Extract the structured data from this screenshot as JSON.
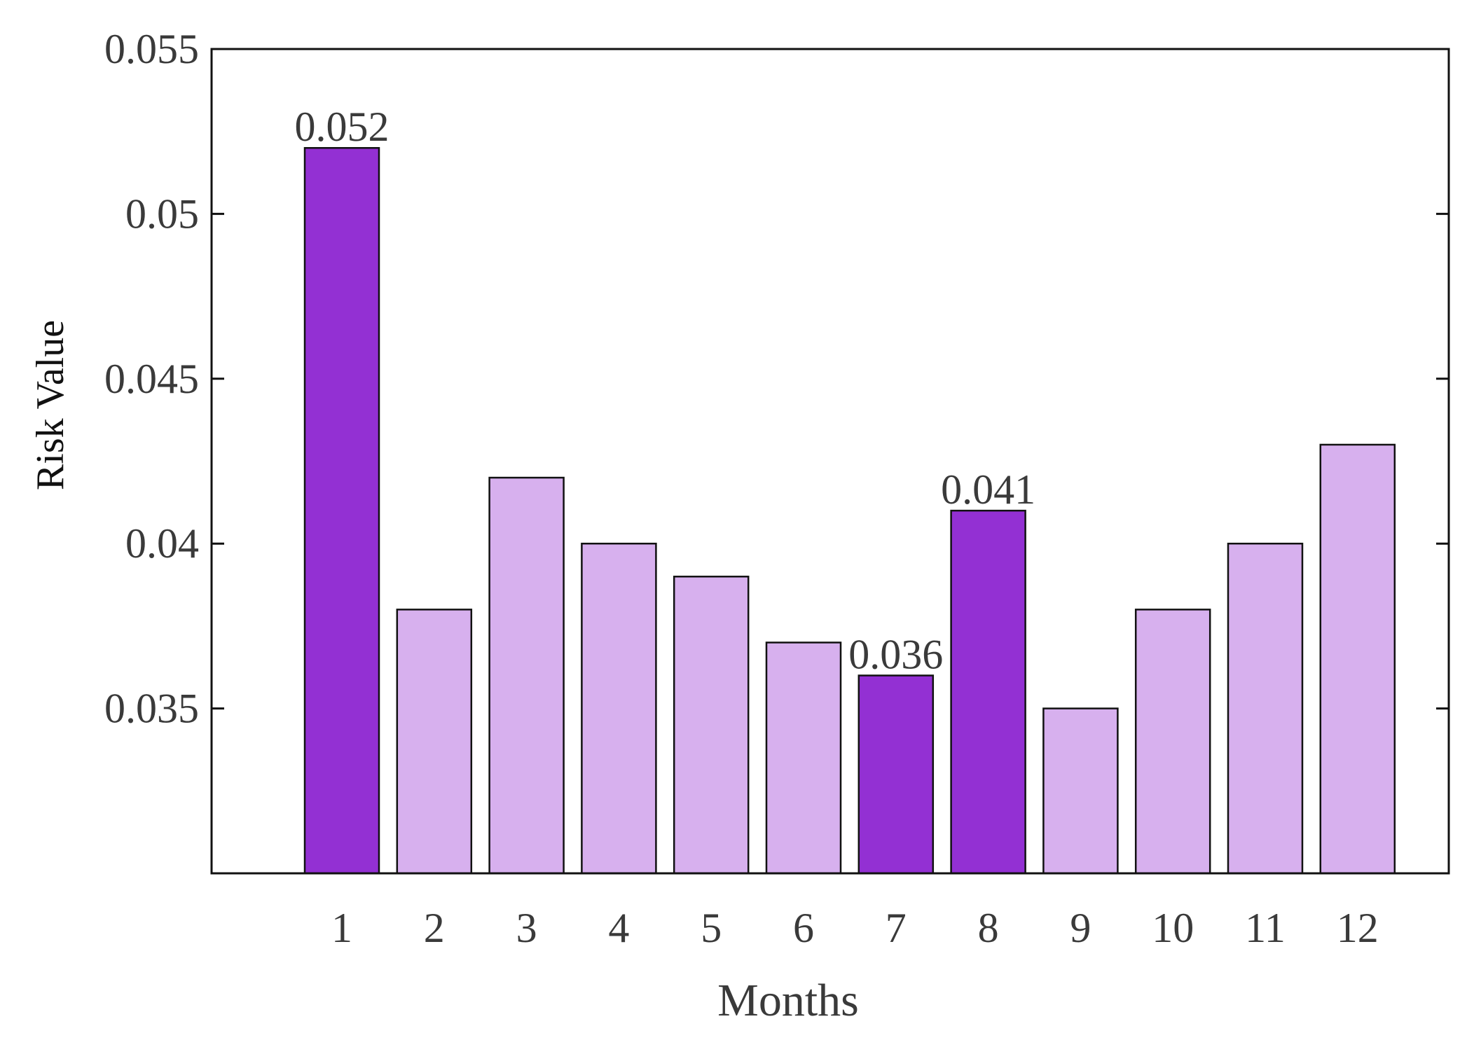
{
  "chart_data": {
    "type": "bar",
    "title": "",
    "xlabel": "Months",
    "ylabel": "Risk Value",
    "categories": [
      "1",
      "2",
      "3",
      "4",
      "5",
      "6",
      "7",
      "8",
      "9",
      "10",
      "11",
      "12"
    ],
    "values": [
      0.052,
      0.038,
      0.042,
      0.04,
      0.039,
      0.037,
      0.036,
      0.041,
      0.035,
      0.038,
      0.04,
      0.043
    ],
    "highlighted": [
      true,
      false,
      false,
      false,
      false,
      false,
      true,
      true,
      false,
      false,
      false,
      false
    ],
    "data_labels": [
      "0.052",
      "",
      "",
      "",
      "",
      "",
      "0.036",
      "0.041",
      "",
      "",
      "",
      ""
    ],
    "ylim": [
      0.03,
      0.055
    ],
    "yticks": [
      0.035,
      0.04,
      0.045,
      0.05,
      0.055
    ],
    "ytick_labels": [
      "0.035",
      "0.04",
      "0.045",
      "0.05",
      "0.055"
    ],
    "grid": false,
    "colors": {
      "highlight": "#9330d3",
      "normal": "#d7b0ee",
      "edge": "#111111",
      "axis": "#111111"
    }
  }
}
